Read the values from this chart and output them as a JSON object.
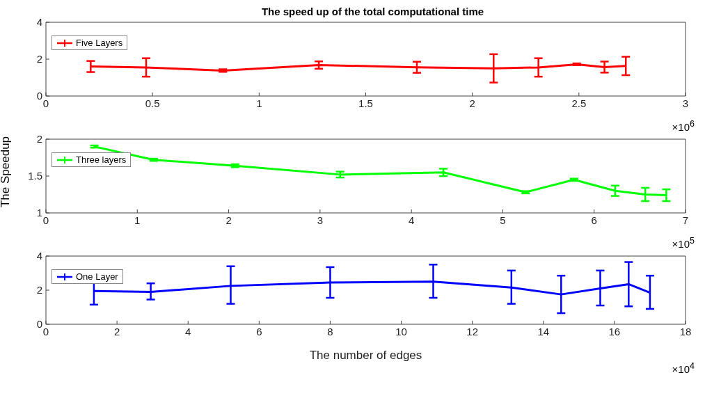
{
  "chart_data": [
    {
      "type": "line",
      "title": "The speed up of the total computational time",
      "x": [
        0.21,
        0.47,
        0.83,
        1.28,
        1.74,
        2.1,
        2.31,
        2.49,
        2.62,
        2.72
      ],
      "series": [
        {
          "name": "Five Layers",
          "color": "#ff0000",
          "values": [
            1.6,
            1.55,
            1.38,
            1.68,
            1.56,
            1.5,
            1.55,
            1.72,
            1.57,
            1.63
          ],
          "errors": [
            0.3,
            0.5,
            0.07,
            0.2,
            0.3,
            0.77,
            0.5,
            0.05,
            0.3,
            0.5
          ]
        }
      ],
      "xlim": [
        0,
        3
      ],
      "xticks": [
        0,
        0.5,
        1,
        1.5,
        2,
        2.5,
        3
      ],
      "ylim": [
        0,
        4
      ],
      "yticks": [
        0,
        2,
        4
      ],
      "legend": "top left",
      "annotations": [
        "×10$^{6}$"
      ]
    },
    {
      "type": "line",
      "ylabel": "The Speedup",
      "x": [
        0.53,
        1.18,
        2.07,
        3.22,
        4.35,
        5.25,
        5.78,
        6.23,
        6.56,
        6.79
      ],
      "series": [
        {
          "name": "Three layers",
          "color": "#00ff00",
          "values": [
            1.9,
            1.72,
            1.64,
            1.52,
            1.55,
            1.28,
            1.45,
            1.3,
            1.25,
            1.24
          ],
          "errors": [
            0.015,
            0.015,
            0.02,
            0.04,
            0.05,
            0.015,
            0.015,
            0.07,
            0.09,
            0.08
          ]
        }
      ],
      "xlim": [
        0,
        7
      ],
      "xticks": [
        0,
        1,
        2,
        3,
        4,
        5,
        6,
        7
      ],
      "ylim": [
        1,
        2
      ],
      "yticks": [
        1,
        1.5,
        2
      ],
      "legend": "top left",
      "annotations": [
        "×10$^{5}$"
      ]
    },
    {
      "type": "line",
      "xlabel": "The number of edges",
      "x": [
        1.35,
        2.95,
        5.2,
        8,
        10.9,
        13.1,
        14.5,
        15.6,
        16.4,
        17
      ],
      "series": [
        {
          "name": "One Layer",
          "color": "#0000ff",
          "values": [
            1.95,
            1.9,
            2.25,
            2.45,
            2.5,
            2.15,
            1.75,
            2.1,
            2.35,
            1.85
          ],
          "errors": [
            [
              1.15,
              2.75
            ],
            [
              1.45,
              2.4
            ],
            [
              1.2,
              3.4
            ],
            [
              1.55,
              3.35
            ],
            [
              1.55,
              3.5
            ],
            [
              1.2,
              3.15
            ],
            [
              0.65,
              2.85
            ],
            [
              1.1,
              3.15
            ],
            [
              1.05,
              3.65
            ],
            [
              0.9,
              2.85
            ]
          ]
        }
      ],
      "xlim": [
        0,
        18
      ],
      "xticks": [
        0,
        2,
        4,
        6,
        8,
        10,
        12,
        14,
        16,
        18
      ],
      "ylim": [
        0,
        4
      ],
      "yticks": [
        0,
        2,
        4
      ],
      "legend": "top left",
      "annotations": [
        "×10$^{4}$"
      ]
    }
  ]
}
